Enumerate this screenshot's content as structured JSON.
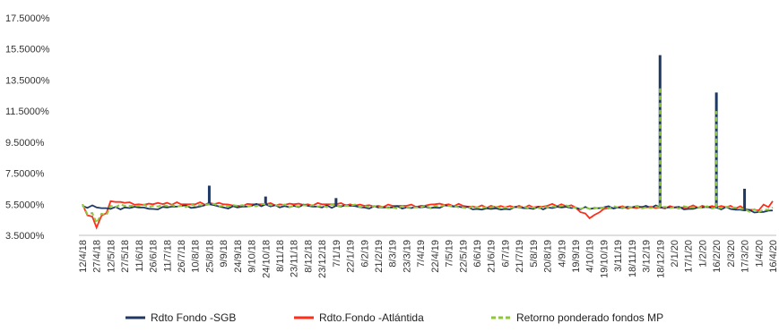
{
  "chart_data": {
    "type": "line",
    "title": "",
    "xlabel": "",
    "ylabel": "",
    "ylim": [
      3.5,
      17.5
    ],
    "y_ticks": [
      "17.5000%",
      "15.5000%",
      "13.5000%",
      "11.5000%",
      "9.5000%",
      "7.5000%",
      "5.5000%",
      "3.5000%"
    ],
    "y_tick_values": [
      17.5,
      15.5,
      13.5,
      11.5,
      9.5,
      7.5,
      5.5,
      3.5
    ],
    "categories": [
      "12/4/18",
      "27/4/18",
      "12/5/18",
      "27/5/18",
      "11/6/18",
      "26/6/18",
      "11/7/18",
      "26/7/18",
      "10/8/18",
      "25/8/18",
      "9/9/18",
      "24/9/18",
      "9/10/18",
      "24/10/18",
      "8/11/18",
      "23/11/18",
      "8/12/18",
      "23/12/18",
      "7/1/19",
      "22/1/19",
      "6/2/19",
      "21/2/19",
      "8/3/19",
      "23/3/19",
      "7/4/19",
      "22/4/19",
      "7/5/19",
      "22/5/19",
      "6/6/19",
      "21/6/19",
      "6/7/19",
      "21/7/19",
      "5/8/19",
      "20/8/19",
      "4/9/19",
      "19/9/19",
      "4/10/19",
      "19/10/19",
      "3/11/19",
      "18/11/19",
      "3/12/19",
      "18/12/19",
      "2/1/20",
      "17/1/20",
      "1/2/20",
      "16/2/20",
      "2/3/20",
      "17/3/20",
      "1/4/20",
      "16/4/20"
    ],
    "grid": false,
    "legend_position": "bottom",
    "series": [
      {
        "name": "Rdto Fondo -SGB",
        "color": "#1f3864",
        "values": [
          5.4,
          5.3,
          5.2,
          5.3,
          5.3,
          5.2,
          5.3,
          5.4,
          5.3,
          5.5,
          5.3,
          5.3,
          5.4,
          5.5,
          5.3,
          5.4,
          5.4,
          5.3,
          5.4,
          5.4,
          5.3,
          5.3,
          5.3,
          5.3,
          5.3,
          5.3,
          5.4,
          5.3,
          5.2,
          5.2,
          5.2,
          5.3,
          5.2,
          5.3,
          5.3,
          5.3,
          5.2,
          5.3,
          5.3,
          5.3,
          5.4,
          5.3,
          5.3,
          5.2,
          5.3,
          5.3,
          5.2,
          5.1,
          5.0,
          5.1
        ],
        "spikes": [
          {
            "category": "25/8/18",
            "value": 6.7
          },
          {
            "category": "24/10/18",
            "value": 6.0
          },
          {
            "category": "7/1/19",
            "value": 5.9
          },
          {
            "category": "18/12/19",
            "value": 15.1
          },
          {
            "category": "16/2/20",
            "value": 12.7
          },
          {
            "category": "17/3/20",
            "value": 6.5
          }
        ]
      },
      {
        "name": "Rdto.Fondo -Atlántida",
        "color": "#ff2d1a",
        "values": [
          5.5,
          4.0,
          5.7,
          5.6,
          5.5,
          5.5,
          5.6,
          5.5,
          5.5,
          5.6,
          5.5,
          5.4,
          5.5,
          5.5,
          5.5,
          5.5,
          5.5,
          5.5,
          5.5,
          5.5,
          5.4,
          5.4,
          5.4,
          5.4,
          5.4,
          5.5,
          5.5,
          5.4,
          5.3,
          5.4,
          5.3,
          5.4,
          5.3,
          5.4,
          5.5,
          5.3,
          4.6,
          5.2,
          5.3,
          5.3,
          5.3,
          5.3,
          5.3,
          5.3,
          5.4,
          5.3,
          5.4,
          5.2,
          5.1,
          5.7
        ]
      },
      {
        "name": "Retorno ponderado fondos MP",
        "color": "#8dc63f",
        "dashed": true,
        "values": [
          5.5,
          4.3,
          5.4,
          5.4,
          5.4,
          5.4,
          5.4,
          5.4,
          5.4,
          5.5,
          5.4,
          5.4,
          5.4,
          5.5,
          5.4,
          5.4,
          5.4,
          5.4,
          5.4,
          5.4,
          5.4,
          5.3,
          5.3,
          5.3,
          5.3,
          5.4,
          5.4,
          5.3,
          5.3,
          5.3,
          5.3,
          5.3,
          5.3,
          5.3,
          5.4,
          5.3,
          5.2,
          5.3,
          5.3,
          5.3,
          5.3,
          5.3,
          5.3,
          5.3,
          5.3,
          5.3,
          5.3,
          5.2,
          5.0,
          5.3
        ],
        "spikes": [
          {
            "category": "18/12/19",
            "value": 13.0
          },
          {
            "category": "16/2/20",
            "value": 11.5
          }
        ]
      }
    ]
  }
}
